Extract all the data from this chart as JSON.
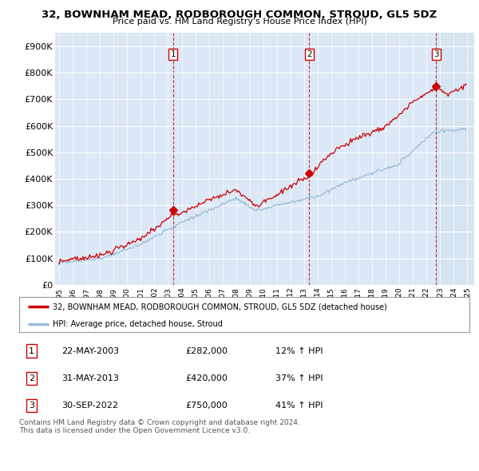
{
  "title": "32, BOWNHAM MEAD, RODBOROUGH COMMON, STROUD, GL5 5DZ",
  "subtitle": "Price paid vs. HM Land Registry's House Price Index (HPI)",
  "ylim": [
    0,
    950000
  ],
  "yticks": [
    0,
    100000,
    200000,
    300000,
    400000,
    500000,
    600000,
    700000,
    800000,
    900000
  ],
  "ytick_labels": [
    "£0",
    "£100K",
    "£200K",
    "£300K",
    "£400K",
    "£500K",
    "£600K",
    "£700K",
    "£800K",
    "£900K"
  ],
  "legend_line1": "32, BOWNHAM MEAD, RODBOROUGH COMMON, STROUD, GL5 5DZ (detached house)",
  "legend_line2": "HPI: Average price, detached house, Stroud",
  "sale_color": "#cc0000",
  "hpi_color": "#99bbdd",
  "vline_color": "#cc0000",
  "table_rows": [
    {
      "num": "1",
      "date": "22-MAY-2003",
      "price": "£282,000",
      "hpi": "12% ↑ HPI"
    },
    {
      "num": "2",
      "date": "31-MAY-2013",
      "price": "£420,000",
      "hpi": "37% ↑ HPI"
    },
    {
      "num": "3",
      "date": "30-SEP-2022",
      "price": "£750,000",
      "hpi": "41% ↑ HPI"
    }
  ],
  "footer": "Contains HM Land Registry data © Crown copyright and database right 2024.\nThis data is licensed under the Open Government Licence v3.0.",
  "background_color": "#ffffff",
  "plot_bg_color": "#dce8f5"
}
